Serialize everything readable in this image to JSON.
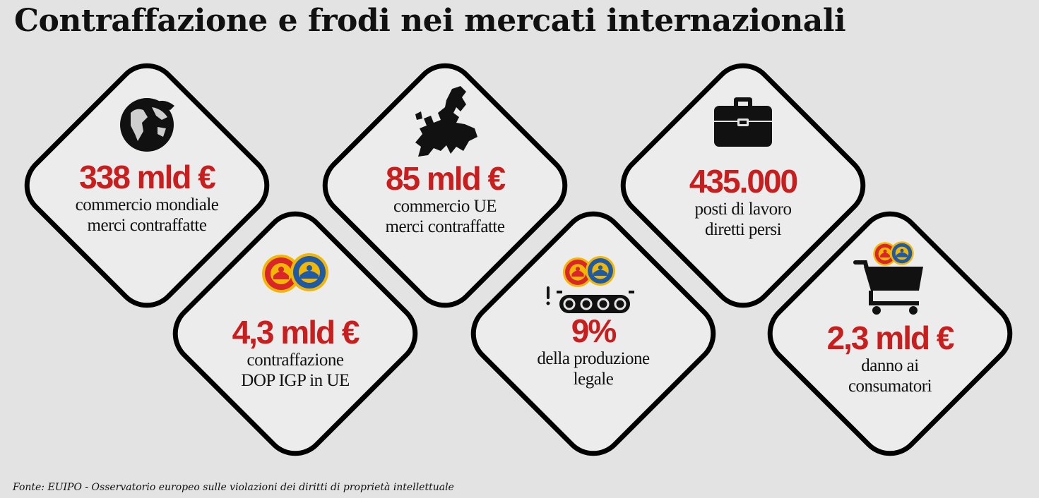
{
  "title": "Contraffazione e frodi nei mercati internazionali",
  "cards": [
    {
      "value": "338 mld €",
      "line1": "commercio mondiale",
      "line2": "merci contraffatte",
      "icon": "globe-icon"
    },
    {
      "value": "4,3 mld €",
      "line1": "contraffazione",
      "line2": "DOP IGP in UE",
      "icon": "dop-igp-seals-icon"
    },
    {
      "value": "85 mld €",
      "line1": "commercio UE",
      "line2": "merci contraffatte",
      "icon": "europe-map-icon"
    },
    {
      "value": "9%",
      "line1": "della produzione",
      "line2": "legale",
      "icon": "conveyor-belt-icon"
    },
    {
      "value": "435.000",
      "line1": "posti di lavoro",
      "line2": "diretti persi",
      "icon": "briefcase-icon"
    },
    {
      "value": "2,3 mld €",
      "line1": "danno ai",
      "line2": "consumatori",
      "icon": "shopping-cart-icon"
    }
  ],
  "colors": {
    "accent": "#c81e1e",
    "background": "#e3e3e3",
    "border": "#000000"
  },
  "source": "Fonte: EUIPO - Osservatorio europeo sulle violazioni dei diritti di proprietà intellettuale"
}
